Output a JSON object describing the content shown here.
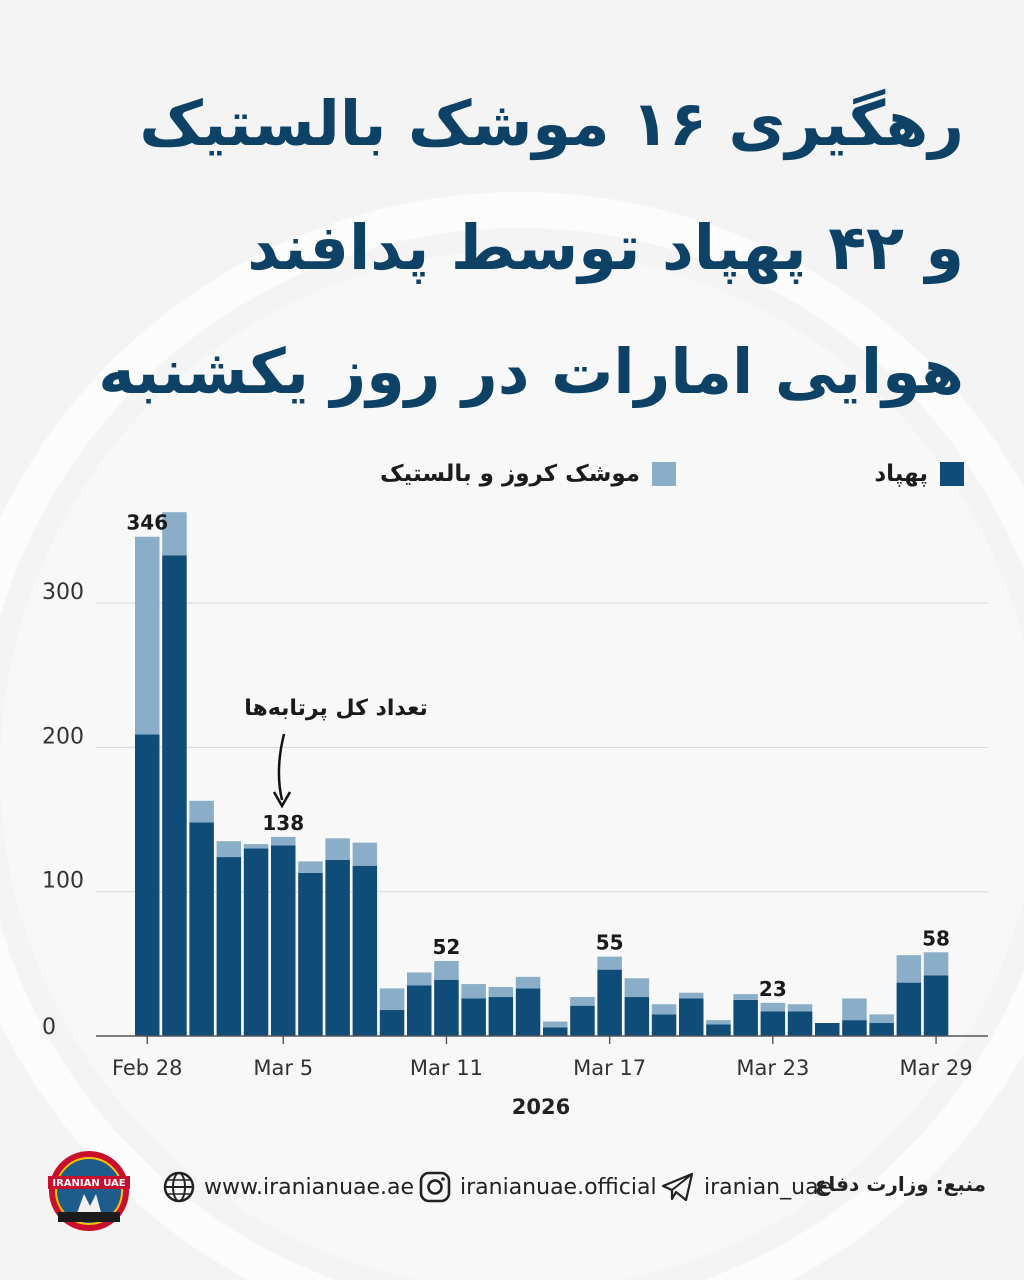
{
  "title_lines": [
    "رهگیری ۱۶ موشک بالستیک",
    "و ۴۲ پهپاد توسط پدافند",
    "هوایی امارات در روز یکشنبه"
  ],
  "legend": {
    "drones_label": "پهپاد",
    "missiles_label": "موشک کروز و بالستیک"
  },
  "annotation": "تعداد کل پرتابه‌ها",
  "colors": {
    "drones": "#0f4c78",
    "missiles": "#8aaec7",
    "title": "#0d4266"
  },
  "chart_data": {
    "type": "bar",
    "stacked": true,
    "x_year_label": "2026",
    "categories": [
      "Feb 28",
      "Mar 1",
      "Mar 2",
      "Mar 3",
      "Mar 4",
      "Mar 5",
      "Mar 6",
      "Mar 7",
      "Mar 8",
      "Mar 9",
      "Mar 10",
      "Mar 11",
      "Mar 12",
      "Mar 13",
      "Mar 14",
      "Mar 15",
      "Mar 16",
      "Mar 17",
      "Mar 18",
      "Mar 19",
      "Mar 20",
      "Mar 21",
      "Mar 22",
      "Mar 23",
      "Mar 24",
      "Mar 25",
      "Mar 26",
      "Mar 27",
      "Mar 28",
      "Mar 29"
    ],
    "x_tick_labels": [
      "Feb 28",
      "Mar 5",
      "Mar 11",
      "Mar 17",
      "Mar 23",
      "Mar 29"
    ],
    "x_tick_indices": [
      0,
      5,
      11,
      17,
      23,
      29
    ],
    "series": [
      {
        "name": "پهپاد",
        "values": [
          209,
          333,
          148,
          124,
          130,
          132,
          113,
          122,
          118,
          18,
          35,
          39,
          26,
          27,
          33,
          6,
          21,
          46,
          27,
          15,
          26,
          8,
          25,
          17,
          17,
          9,
          11,
          9,
          37,
          42
        ]
      },
      {
        "name": "موشک کروز و بالستیک",
        "values": [
          137,
          30,
          15,
          11,
          3,
          6,
          8,
          15,
          16,
          15,
          9,
          13,
          10,
          7,
          8,
          4,
          6,
          9,
          13,
          7,
          4,
          3,
          4,
          6,
          5,
          0,
          15,
          6,
          19,
          16
        ]
      }
    ],
    "data_labels": [
      {
        "index": 0,
        "text": "346"
      },
      {
        "index": 5,
        "text": "138"
      },
      {
        "index": 11,
        "text": "52"
      },
      {
        "index": 17,
        "text": "55"
      },
      {
        "index": 23,
        "text": "23"
      },
      {
        "index": 29,
        "text": "58"
      }
    ],
    "y_ticks": [
      0,
      100,
      200,
      300
    ],
    "ylim": [
      0,
      360
    ],
    "grid": true
  },
  "footer": {
    "website": "www.iranianuae.ae",
    "instagram": "iranianuae.official",
    "telegram": "iranian_uae",
    "source": "منبع: وزارت دفاع",
    "logo_text_top": "IRANIAN UAE",
    "logo_text_bottom": "ایرانیان امارات"
  }
}
